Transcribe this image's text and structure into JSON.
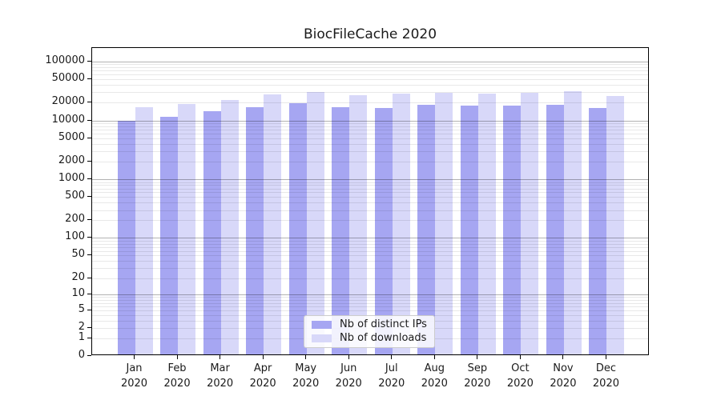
{
  "title": "BiocFileCache 2020",
  "chart_data": {
    "type": "bar",
    "title": "BiocFileCache 2020",
    "y_scale": "log10(1+x)",
    "ylim": [
      0,
      170000
    ],
    "y_ticks": [
      100000,
      50000,
      20000,
      10000,
      5000,
      2000,
      1000,
      500,
      200,
      100,
      50,
      20,
      10,
      5,
      2,
      1,
      0
    ],
    "grid": {
      "major_values": [
        100000,
        10000,
        1000,
        100,
        10
      ],
      "minor_multipliers": [
        2,
        3,
        4,
        5,
        6,
        7,
        8,
        9
      ],
      "extra_minor_values": [
        1
      ],
      "orientation": "horizontal",
      "drawn_over_bars": true
    },
    "categories": [
      "Jan",
      "Feb",
      "Mar",
      "Apr",
      "May",
      "Jun",
      "Jul",
      "Aug",
      "Sep",
      "Oct",
      "Nov",
      "Dec"
    ],
    "year_label": "2020",
    "series": [
      {
        "key": "distinct-ips",
        "name": "Nb of distinct IPs",
        "color": "#a6a6f2",
        "values": [
          9300,
          10900,
          13500,
          15800,
          18300,
          15800,
          15500,
          17200,
          16700,
          16900,
          17200,
          15500
        ]
      },
      {
        "key": "downloads",
        "name": "Nb of downloads",
        "color": "#d8d8f9",
        "values": [
          16000,
          18100,
          21200,
          26200,
          28400,
          25600,
          26700,
          27500,
          26700,
          27500,
          29900,
          24800
        ]
      }
    ],
    "legend_position": "inside-bottom-center"
  },
  "colors": {
    "background": "#ffffff",
    "axis": "#000000",
    "grid_major": "rgba(0,0,0,0.30)",
    "grid_minor": "rgba(0,0,0,0.09)",
    "text": "#1a1a1a",
    "legend_bg": "rgba(255,255,255,0.85)",
    "legend_border": "#cccccc"
  }
}
